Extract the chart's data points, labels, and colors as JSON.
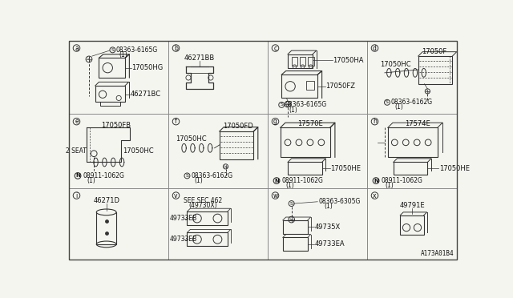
{
  "bg_color": "#f5f5f0",
  "border_color": "#444444",
  "text_color": "#111111",
  "line_color": "#333333",
  "grid_color": "#888888",
  "cols": [
    8,
    168,
    328,
    488,
    632
  ],
  "rows": [
    8,
    127,
    247,
    363
  ],
  "bottom_right_text": "A173A01B4",
  "font_size_cell_label": 7,
  "font_size_part": 6.0,
  "font_size_small": 5.5
}
